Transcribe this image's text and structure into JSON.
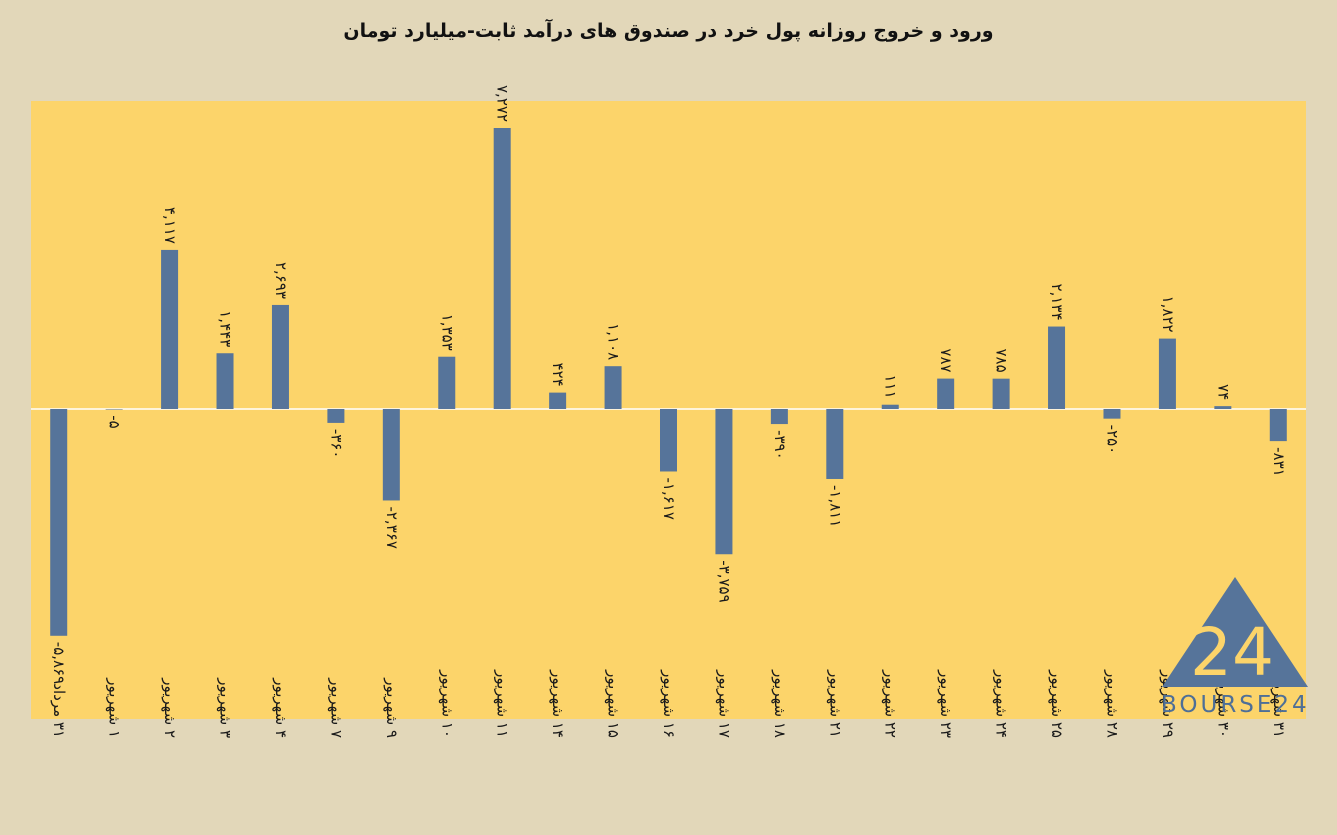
{
  "title": "ورود و خروج روزانه پول خرد در صندوق های درآمد ثابت-میلیارد تومان",
  "logo": {
    "text": "BOURSE24",
    "mark": "24"
  },
  "colors": {
    "plot_bg": "#fcd46a",
    "page_bg": "#e2d7b9",
    "bar": "#56749a",
    "zero_line": "#ffffff"
  },
  "chart_data": {
    "type": "bar",
    "title": "ورود و خروج روزانه پول خرد در صندوق های درآمد ثابت-میلیارد تومان",
    "categories": [
      "۳۱ مرداد",
      "۱ شهریور",
      "۲ شهریور",
      "۳ شهریور",
      "۴ شهریور",
      "۷ شهریور",
      "۹ شهریور",
      "۱۰ شهریور",
      "۱۱ شهریور",
      "۱۴ شهریور",
      "۱۵ شهریور",
      "۱۶ شهریور",
      "۱۷ شهریور",
      "۱۸ شهریور",
      "۲۱ شهریور",
      "۲۲ شهریور",
      "۲۳ شهریور",
      "۲۴ شهریور",
      "۲۵ شهریور",
      "۲۸ شهریور",
      "۲۹ شهریور",
      "۳۰ شهریور",
      "۳۱ شهریور"
    ],
    "values": [
      -5869,
      -5,
      4117,
      1443,
      2693,
      -360,
      -2367,
      1353,
      7272,
      424,
      1108,
      -1617,
      -3759,
      -390,
      -1811,
      111,
      787,
      785,
      2134,
      -250,
      1822,
      74,
      -831
    ],
    "data_labels": [
      "-۵,۸۶۹",
      "-۵",
      "۴,۱۱۷",
      "۱,۴۴۳",
      "۲,۶۹۳",
      "-۳۶۰",
      "-۲,۳۶۷",
      "۱,۳۵۳",
      "۷,۲۷۲",
      "۴۲۴",
      "۱,۱۰۸",
      "-۱,۶۱۷",
      "-۳,۷۵۹",
      "-۳۹۰",
      "-۱,۸۱۱",
      "۱۱۱",
      "۷۸۷",
      "۷۸۵",
      "۲,۱۳۴",
      "-۲۵۰",
      "۱,۸۲۲",
      "۷۴",
      "-۸۳۱"
    ],
    "ylim": [
      -8000,
      8000
    ],
    "grid": false,
    "legend": "none"
  }
}
